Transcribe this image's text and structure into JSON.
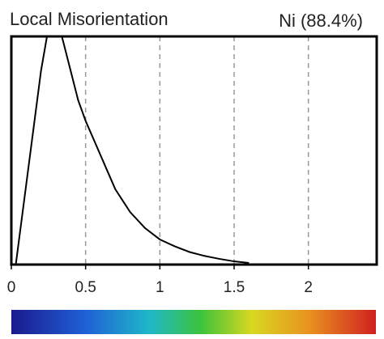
{
  "chart_data": {
    "type": "line",
    "title": "Local Misorientation",
    "subtitle": "Ni (88.4%)",
    "x": [
      0.03,
      0.1,
      0.2,
      0.28,
      0.36,
      0.45,
      0.5,
      0.6,
      0.7,
      0.8,
      0.9,
      1.0,
      1.1,
      1.2,
      1.3,
      1.4,
      1.5,
      1.6
    ],
    "series": [
      {
        "color": "#000000",
        "values": [
          0,
          35,
          85,
          115,
          95,
          72,
          63,
          48,
          33,
          23,
          16,
          11,
          8,
          5.5,
          3.8,
          2.5,
          1.4,
          0.7
        ]
      }
    ],
    "xlim": [
      0,
      2.46
    ],
    "ylim": [
      0,
      100
    ],
    "xticks": [
      0,
      0.5,
      1,
      1.5,
      2
    ],
    "grid": true
  }
}
